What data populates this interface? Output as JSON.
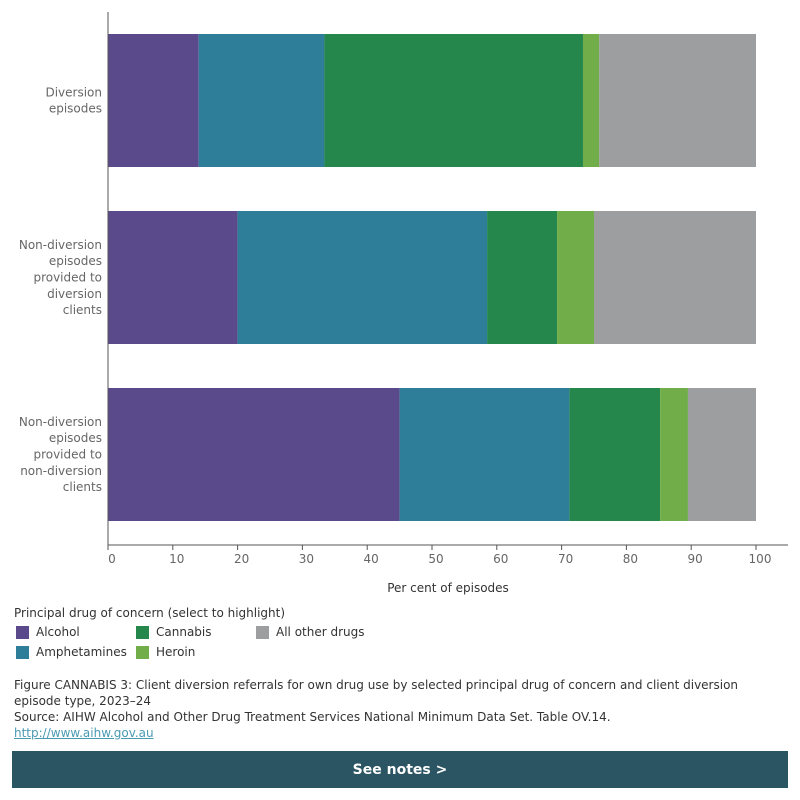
{
  "chart_data": {
    "type": "bar",
    "orientation": "horizontal",
    "stacked": true,
    "categories": [
      [
        "Diversion",
        "episodes"
      ],
      [
        "Non-diversion",
        "episodes",
        "provided to",
        "diversion",
        "clients"
      ],
      [
        "Non-diversion",
        "episodes",
        "provided to",
        "non-diversion",
        "clients"
      ]
    ],
    "series": [
      {
        "name": "Alcohol",
        "color": "#5a4a8c",
        "values": [
          14.0,
          20.0,
          45.0
        ]
      },
      {
        "name": "Amphetamines",
        "color": "#2e7e99",
        "values": [
          19.4,
          38.5,
          26.2
        ]
      },
      {
        "name": "Cannabis",
        "color": "#26874c",
        "values": [
          39.9,
          10.8,
          14.0
        ]
      },
      {
        "name": "Heroin",
        "color": "#71ae4a",
        "values": [
          2.5,
          5.7,
          4.3
        ]
      },
      {
        "name": "All other drugs",
        "color": "#9c9e9f",
        "values": [
          24.2,
          25.0,
          10.5
        ]
      }
    ],
    "xlabel": "Per cent of episodes",
    "xlim": [
      0,
      100
    ],
    "xticks": [
      0,
      10,
      20,
      30,
      40,
      50,
      60,
      70,
      80,
      90,
      100
    ],
    "grid": false,
    "legend": {
      "title": "Principal drug of concern (select to highlight)",
      "placement": "bottom-left"
    }
  },
  "caption": {
    "figure": "Figure CANNABIS 3: Client diversion referrals for own drug use by selected principal drug of concern and client diversion episode type, 2023–24",
    "source": "Source: AIHW Alcohol and Other Drug Treatment Services National Minimum Data Set. Table OV.14.",
    "link": "http://www.aihw.gov.au"
  },
  "notes_button": {
    "label": "See notes >"
  }
}
